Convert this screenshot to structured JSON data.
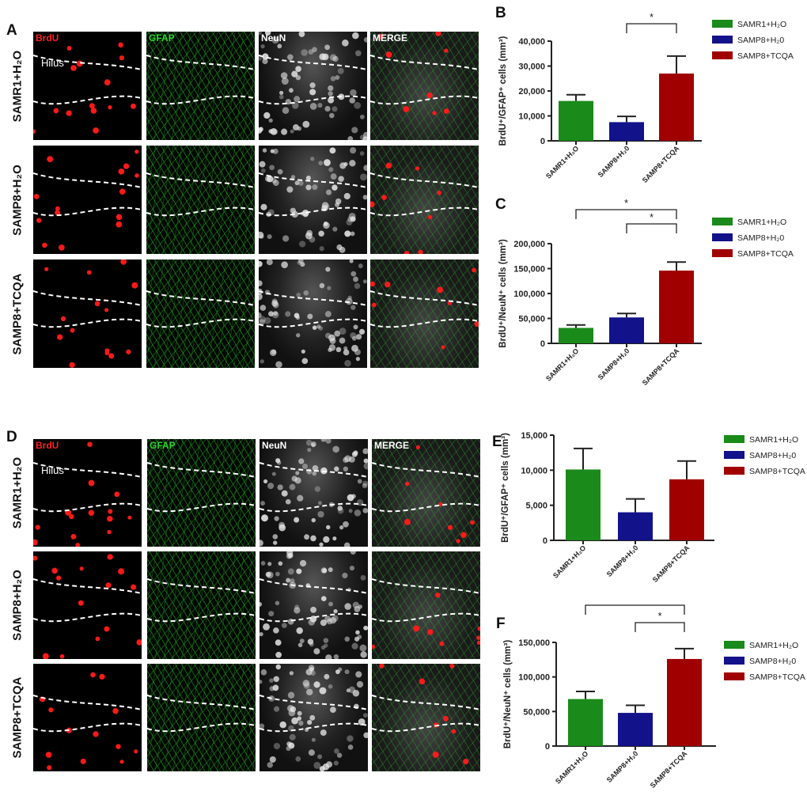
{
  "panel_letters": {
    "A": "A",
    "B": "B",
    "C": "C",
    "D": "D",
    "E": "E",
    "F": "F"
  },
  "micrographs": {
    "channels": [
      "BrdU",
      "GFAP",
      "NeuN",
      "MERGE"
    ],
    "channel_colors": [
      "#ff2020",
      "#2fd02f",
      "#ffffff",
      "#ffffff"
    ],
    "rows": [
      "SAMR1+H₂O",
      "SAMP8+H₂O",
      "SAMP8+TCQA"
    ],
    "region_label": "Hilus"
  },
  "chart_data": [
    {
      "id": "B",
      "type": "bar",
      "categories": [
        "SAMR1+H₂O",
        "SAMP8+H₂0",
        "SAMP8+TCQA"
      ],
      "values": [
        16000,
        7500,
        27000
      ],
      "errors": [
        2500,
        2300,
        7000
      ],
      "ylabel": "BrdU⁺/GFAP⁺ cells (mm³)",
      "ylim": [
        0,
        40000
      ],
      "yticks": [
        0,
        10000,
        20000,
        30000,
        40000
      ],
      "ytick_labels": [
        "0",
        "10,000",
        "20,000",
        "30,000",
        "40,000"
      ],
      "colors": [
        "#1a8a1a",
        "#12128a",
        "#a00000"
      ],
      "significance": [
        {
          "from": 1,
          "to": 2,
          "label": "*"
        }
      ],
      "legend": [
        "SAMR1+H₂O",
        "SAMP8+H₂0",
        "SAMP8+TCQA"
      ],
      "legend_position": "right"
    },
    {
      "id": "C",
      "type": "bar",
      "categories": [
        "SAMR1+H₂O",
        "SAMP8+H₂0",
        "SAMP8+TCQA"
      ],
      "values": [
        31000,
        52000,
        146000
      ],
      "errors": [
        6000,
        8000,
        17000
      ],
      "ylabel": "BrdU⁺/NeuN⁺ cells (mm³)",
      "ylim": [
        0,
        200000
      ],
      "yticks": [
        0,
        50000,
        100000,
        150000,
        200000
      ],
      "ytick_labels": [
        "0",
        "50,000",
        "100,000",
        "150,000",
        "200,000"
      ],
      "colors": [
        "#1a8a1a",
        "#12128a",
        "#a00000"
      ],
      "significance": [
        {
          "from": 0,
          "to": 2,
          "label": "*"
        },
        {
          "from": 1,
          "to": 2,
          "label": "*"
        }
      ],
      "legend": [
        "SAMR1+H₂O",
        "SAMP8+H₂0",
        "SAMP8+TCQA"
      ],
      "legend_position": "right"
    },
    {
      "id": "E",
      "type": "bar",
      "categories": [
        "SAMR1+H₂O",
        "SAMP8+H₂0",
        "SAMP8+TCQA"
      ],
      "values": [
        10100,
        4000,
        8700
      ],
      "errors": [
        3000,
        1900,
        2600
      ],
      "ylabel": "BrdU⁺/GFAP⁺ cells (mm³)",
      "ylim": [
        0,
        15000
      ],
      "yticks": [
        0,
        5000,
        10000,
        15000
      ],
      "ytick_labels": [
        "0",
        "5,000",
        "10,000",
        "15,000"
      ],
      "colors": [
        "#1a8a1a",
        "#12128a",
        "#a00000"
      ],
      "significance": [],
      "legend": [
        "SAMR1+H₂O",
        "SAMP8+H₂0",
        "SAMP8+TCQA"
      ],
      "legend_position": "right"
    },
    {
      "id": "F",
      "type": "bar",
      "categories": [
        "SAMR1+H₂O",
        "SAMP8+H₂0",
        "SAMP8+TCQA"
      ],
      "values": [
        68000,
        48000,
        126000
      ],
      "errors": [
        11000,
        11000,
        15000
      ],
      "ylabel": "BrdU⁺/NeuN⁺ cells (mm³)",
      "ylim": [
        0,
        150000
      ],
      "yticks": [
        0,
        50000,
        100000,
        150000
      ],
      "ytick_labels": [
        "0",
        "50,000",
        "100,000",
        "150,000"
      ],
      "colors": [
        "#1a8a1a",
        "#12128a",
        "#a00000"
      ],
      "significance": [
        {
          "from": 0,
          "to": 2,
          "label": "*"
        },
        {
          "from": 1,
          "to": 2,
          "label": "*"
        }
      ],
      "legend": [
        "SAMR1+H₂O",
        "SAMP8+H₂0",
        "SAMP8+TCQA"
      ],
      "legend_position": "right"
    }
  ]
}
